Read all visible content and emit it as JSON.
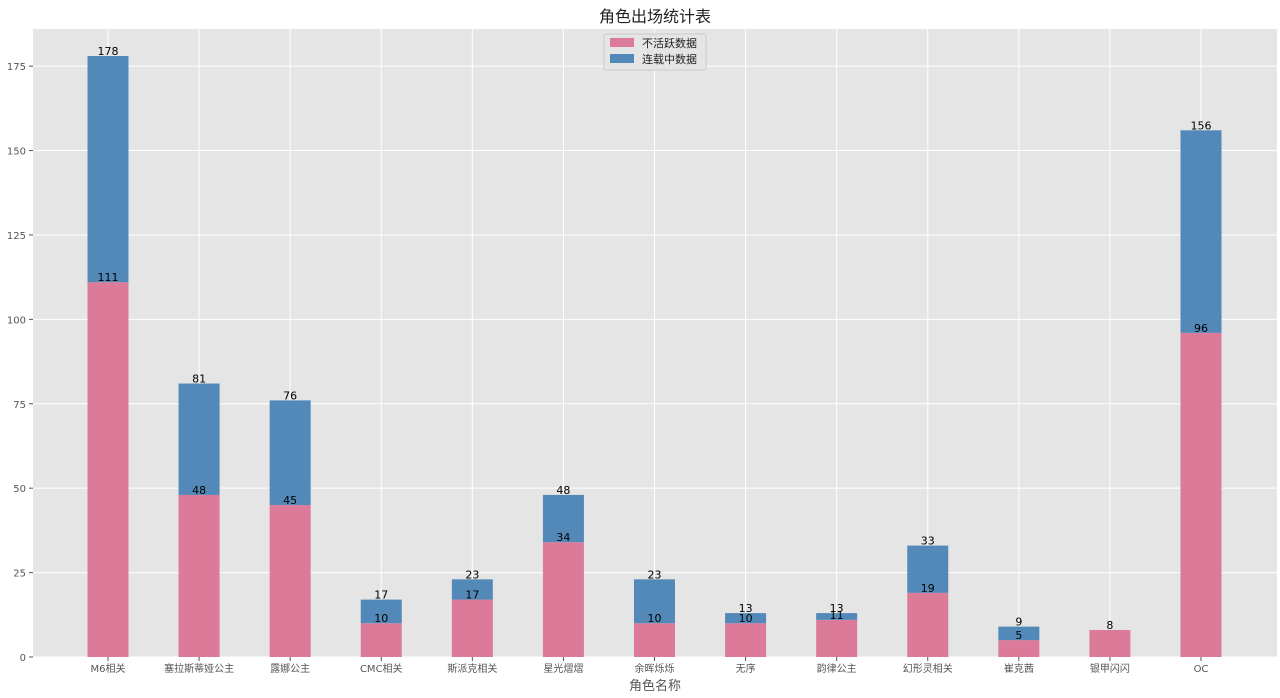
{
  "chart_data": {
    "type": "bar",
    "stacked": true,
    "title": "角色出场统计表",
    "xlabel": "角色名称",
    "ylabel": "",
    "ylim": [
      0,
      186
    ],
    "yticks": [
      0,
      25,
      50,
      75,
      100,
      125,
      150,
      175
    ],
    "grid": true,
    "legend_position": "top-center",
    "categories": [
      "M6相关",
      "塞拉斯蒂娅公主",
      "露娜公主",
      "CMC相关",
      "斯派克相关",
      "星光熠熠",
      "余晖烁烁",
      "无序",
      "韵律公主",
      "幻形灵相关",
      "崔克茜",
      "银甲闪闪",
      "OC"
    ],
    "series": [
      {
        "name": "不活跃数据",
        "color": "#dc7a99",
        "values": [
          111,
          48,
          45,
          10,
          17,
          34,
          10,
          10,
          11,
          19,
          5,
          8,
          96
        ]
      },
      {
        "name": "连载中数据",
        "color": "#5389b8",
        "values": [
          67,
          33,
          31,
          7,
          6,
          14,
          13,
          3,
          2,
          14,
          4,
          0,
          60
        ]
      }
    ],
    "bottom_labels": [
      "111",
      "48",
      "45",
      "10",
      "17",
      "34",
      "10",
      "10",
      "11",
      "19",
      "5",
      "8",
      "96"
    ],
    "total_labels": [
      "178",
      "81",
      "76",
      "17",
      "23",
      "48",
      "23",
      "13",
      "13",
      "33",
      "9",
      "",
      "156"
    ]
  },
  "colors": {
    "plot_background": "#e5e5e5",
    "grid": "#ffffff",
    "axis_text": "#555555",
    "title_text": "#222222"
  }
}
